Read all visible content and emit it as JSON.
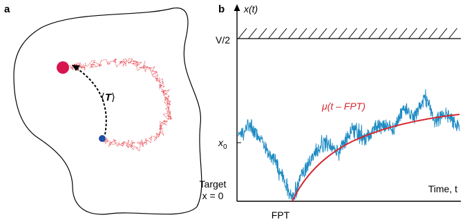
{
  "panel_a": {
    "letter": "a",
    "mean_label_left": "⟨",
    "mean_label_symbol": "T",
    "mean_label_right": "⟩"
  },
  "panel_b": {
    "letter": "b",
    "y_axis_label": "x(t)",
    "boundary_label": "V/2",
    "x0_label_base": "x",
    "x0_label_sub": "0",
    "target_label_line1": "Target",
    "target_label_line2": "x = 0",
    "fpt_label": "FPT",
    "x_axis_label": "Time, t",
    "mean_curve_label": "μ(t – FPT)"
  },
  "colors": {
    "target_dot": "#d7144e",
    "start_dot": "#1f4fa6",
    "random_walk": "#e8414a",
    "trajectory": "#1e8bc3",
    "mean_curve": "#d6262e",
    "axis": "#000000"
  }
}
